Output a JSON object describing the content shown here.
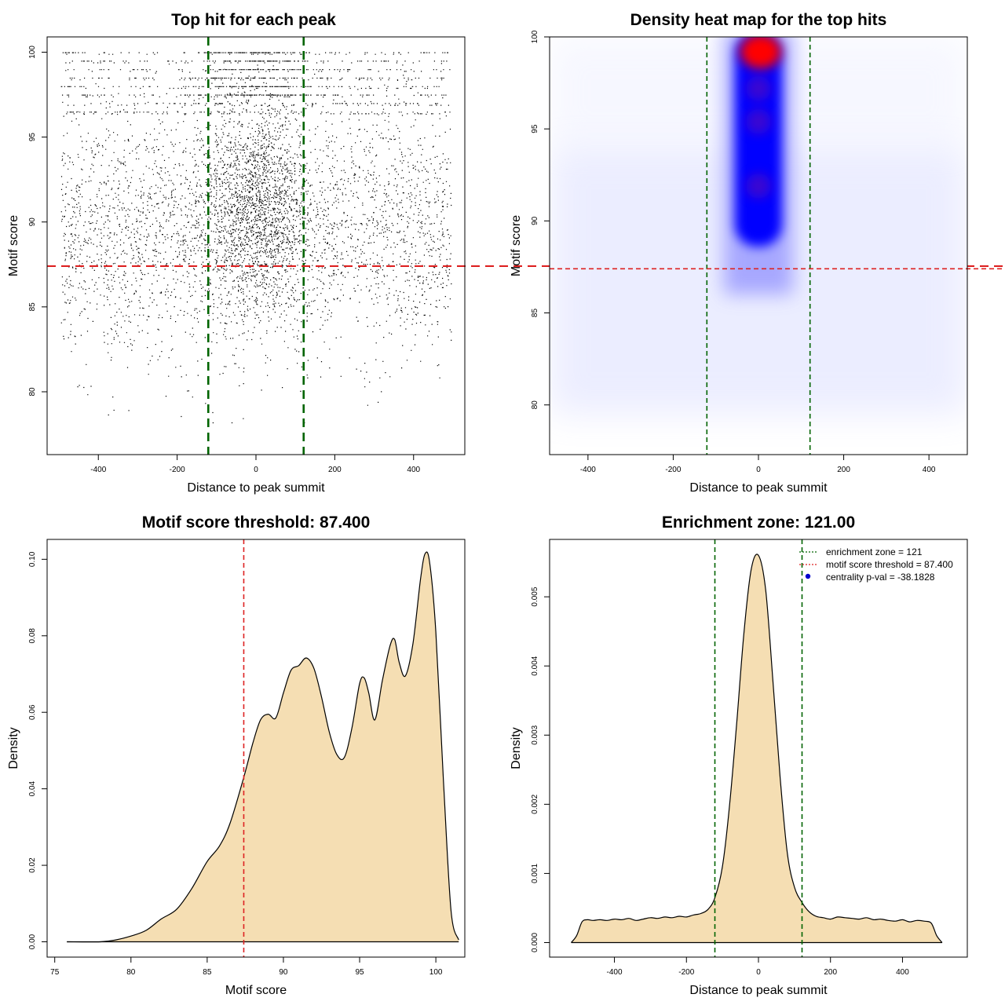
{
  "chart_data": [
    {
      "type": "scatter",
      "title": "Top hit for each peak",
      "xlabel": "Distance to peak summit",
      "ylabel": "Motif score",
      "xlim": [
        -530,
        530
      ],
      "ylim": [
        76.3,
        100.9
      ],
      "xticks": [
        -400,
        -200,
        0,
        200,
        400
      ],
      "yticks": [
        80,
        85,
        90,
        95,
        100
      ],
      "vlines": [
        -121,
        121
      ],
      "hline": 87.4,
      "vline_color": "#006400",
      "hline_color": "#dd2222",
      "point_color": "#000000",
      "description_note": "approx. 20000 points; dense near x=0, scores 78-100, discrete bands above 97"
    },
    {
      "type": "heatmap",
      "title": "Density heat map for the top hits",
      "xlabel": "Distance to peak summit",
      "ylabel": "Motif score",
      "xlim": [
        -490,
        490
      ],
      "ylim": [
        77.3,
        100
      ],
      "xticks": [
        -400,
        -200,
        0,
        200,
        400
      ],
      "yticks": [
        80,
        85,
        90,
        95,
        100
      ],
      "vlines": [
        -121,
        121
      ],
      "hline": 87.4,
      "vline_color": "#006400",
      "hline_color": "#dd2222",
      "colors": [
        "#ffffff",
        "#0000ff",
        "#ff0000"
      ],
      "hotspots": [
        {
          "x": 5,
          "y": 99.2,
          "level": "high"
        },
        {
          "x": 0,
          "y": 97.2,
          "level": "medium"
        },
        {
          "x": 0,
          "y": 95.4,
          "level": "medium"
        },
        {
          "x": 0,
          "y": 91.9,
          "level": "medium"
        }
      ]
    },
    {
      "type": "area",
      "title": "Motif score threshold: 87.400",
      "xlabel": "Motif score",
      "ylabel": "Density",
      "xlim": [
        74.5,
        101.9
      ],
      "ylim": [
        -0.004,
        0.1052
      ],
      "xticks": [
        75,
        80,
        85,
        90,
        95,
        100
      ],
      "yticks": [
        0.0,
        0.02,
        0.04,
        0.06,
        0.08,
        0.1
      ],
      "ytick_labels": [
        "0.00",
        "0.02",
        "0.04",
        "0.06",
        "0.08",
        "0.10"
      ],
      "vline": 87.4,
      "vline_color": "#dd2222",
      "fill_color": "#f5deb3",
      "x": [
        75.8,
        78,
        79,
        80,
        81,
        82,
        83,
        84,
        85,
        85.8,
        86.5,
        87.4,
        88,
        88.5,
        89,
        89.5,
        90,
        90.5,
        91,
        91.5,
        92,
        92.5,
        93,
        93.5,
        94,
        94.5,
        95,
        95.3,
        95.6,
        96,
        96.5,
        97,
        97.3,
        97.6,
        98,
        98.5,
        99,
        99.3,
        99.6,
        100,
        100.5,
        101,
        101.5
      ],
      "y": [
        0.0,
        0.0,
        0.0005,
        0.0015,
        0.003,
        0.006,
        0.0085,
        0.014,
        0.021,
        0.025,
        0.031,
        0.043,
        0.052,
        0.058,
        0.0595,
        0.0585,
        0.065,
        0.071,
        0.0722,
        0.0742,
        0.0715,
        0.064,
        0.055,
        0.049,
        0.0482,
        0.056,
        0.0675,
        0.069,
        0.065,
        0.058,
        0.0685,
        0.0775,
        0.079,
        0.073,
        0.0695,
        0.078,
        0.095,
        0.1015,
        0.099,
        0.081,
        0.042,
        0.008,
        0.0005
      ]
    },
    {
      "type": "area",
      "title": "Enrichment zone: 121.00",
      "xlabel": "Distance to peak summit",
      "ylabel": "Density",
      "xlim": [
        -580,
        580
      ],
      "ylim": [
        -0.00021,
        0.00583
      ],
      "xticks": [
        -400,
        -200,
        0,
        200,
        400
      ],
      "yticks": [
        0.0,
        0.001,
        0.002,
        0.003,
        0.004,
        0.005
      ],
      "ytick_labels": [
        "0.000",
        "0.001",
        "0.002",
        "0.003",
        "0.004",
        "0.005"
      ],
      "vlines": [
        -121,
        121
      ],
      "vline_color": "#006400",
      "fill_color": "#f5deb3",
      "x": [
        -520,
        -505,
        -490,
        -475,
        -460,
        -440,
        -420,
        -400,
        -380,
        -360,
        -340,
        -320,
        -300,
        -280,
        -260,
        -240,
        -220,
        -200,
        -180,
        -160,
        -140,
        -121,
        -100,
        -80,
        -60,
        -40,
        -20,
        0,
        20,
        40,
        60,
        80,
        100,
        121,
        140,
        160,
        180,
        200,
        220,
        240,
        260,
        280,
        300,
        320,
        340,
        360,
        380,
        400,
        420,
        440,
        460,
        480,
        495,
        510
      ],
      "y": [
        0.0,
        0.0001,
        0.0003,
        0.00033,
        0.00032,
        0.00033,
        0.00032,
        0.00034,
        0.00033,
        0.00035,
        0.00032,
        0.00034,
        0.00036,
        0.00035,
        0.00037,
        0.00036,
        0.00038,
        0.00037,
        0.0004,
        0.00042,
        0.00048,
        0.00065,
        0.0011,
        0.002,
        0.0032,
        0.0045,
        0.0054,
        0.0056,
        0.0051,
        0.0038,
        0.0024,
        0.0013,
        0.0008,
        0.00058,
        0.00045,
        0.00038,
        0.00036,
        0.00034,
        0.00037,
        0.00036,
        0.00035,
        0.00034,
        0.00036,
        0.00033,
        0.00034,
        0.00032,
        0.00031,
        0.00033,
        0.0003,
        0.00032,
        0.00031,
        0.00028,
        0.0001,
        0.0
      ],
      "legend": {
        "position": "top-right",
        "entries": [
          {
            "label": "enrichment zone = 121",
            "color": "#006400",
            "kind": "dotted-line"
          },
          {
            "label": "motif score threshold = 87.400",
            "color": "#dd2222",
            "kind": "dotted-line"
          },
          {
            "label": "centrality p-val = -38.1828",
            "color": "#0000cc",
            "kind": "point"
          }
        ]
      }
    }
  ]
}
